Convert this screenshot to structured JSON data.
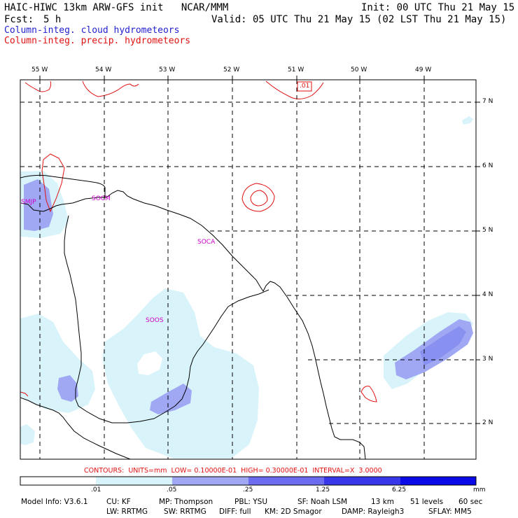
{
  "header": {
    "title": "HAIC-HIWC 13km ARW-GFS init   NCAR/MMM",
    "init": "Init: 00 UTC Thu 21 May 15",
    "fcst_label": "Fcst:",
    "fcst_value": "5 h",
    "valid": "Valid: 05 UTC Thu 21 May 15 (02 LST Thu 21 May 15)",
    "field1": "Column-integ. cloud hydrometeors",
    "field2": "Column-integ. precip. hydrometeors"
  },
  "colors": {
    "field1": "#1f1fd0",
    "field2": "#e01010",
    "level1": "#d8f4fa",
    "level2": "#a0a8f4",
    "level3": "#6c6cf0",
    "level4": "#3838ea",
    "level5": "#0a0ae8"
  },
  "map": {
    "lon_labels": [
      "55 W",
      "54 W",
      "53 W",
      "52 W",
      "51 W",
      "50 W",
      "49 W"
    ],
    "lat_labels": [
      "7 N",
      "6 N",
      "5 N",
      "4 N",
      "3 N",
      "2 N"
    ],
    "stations": [
      "SMJP",
      "SOCM",
      "SOCA",
      "SOOS"
    ],
    "contour_label": ".01"
  },
  "contours_line": "CONTOURS:  UNITS=mm  LOW= 0.10000E-01  HIGH= 0.30000E-01  INTERVAL=X  3.0000",
  "colorbar": {
    "ticks": [
      ".01",
      ".05",
      ".25",
      "1.25",
      "6.25"
    ],
    "units": "mm"
  },
  "footer": {
    "line1": [
      "Model Info: V3.6.1",
      "CU: KF",
      "MP: Thompson",
      "PBL: YSU",
      "SF: Noah LSM",
      "13 km",
      "51 levels",
      "60 sec"
    ],
    "line2": [
      "LW: RRTMG",
      "SW: RRTMG",
      "DIFF: full",
      "KM: 2D Smagor",
      "DAMP: Rayleigh3",
      "SFLAY: MM5"
    ]
  }
}
